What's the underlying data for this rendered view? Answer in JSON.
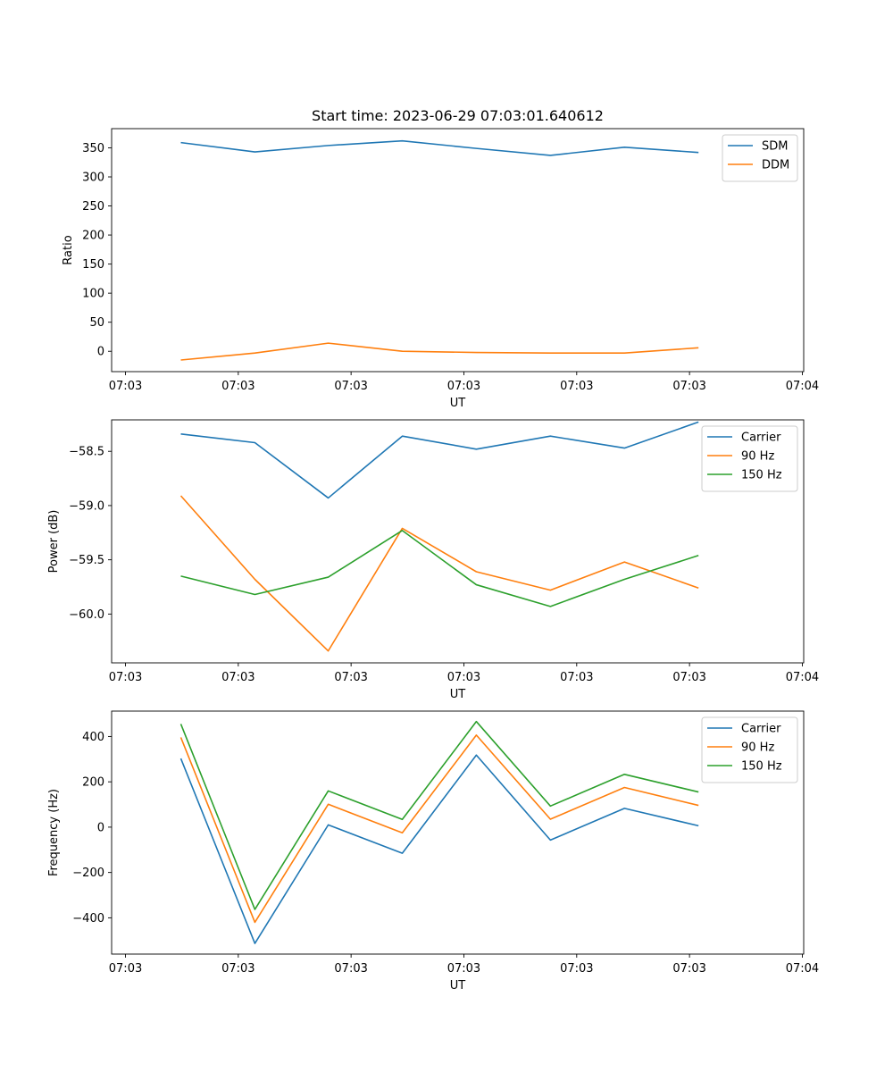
{
  "chart_data": [
    {
      "type": "line",
      "title": "Start time: 2023-06-29 07:03:01.640612",
      "xlabel": "UT",
      "ylabel": "Ratio",
      "legend_position": "top-right",
      "grid": false,
      "xlim": [
        0,
        1
      ],
      "ylim": [
        -35,
        383
      ],
      "x_ticks": [
        {
          "v": 0.02,
          "label": "07:03"
        },
        {
          "v": 0.183,
          "label": "07:03"
        },
        {
          "v": 0.346,
          "label": "07:03"
        },
        {
          "v": 0.509,
          "label": "07:03"
        },
        {
          "v": 0.672,
          "label": "07:03"
        },
        {
          "v": 0.835,
          "label": "07:03"
        },
        {
          "v": 0.998,
          "label": "07:04"
        }
      ],
      "y_ticks": [
        {
          "v": 0,
          "label": "0"
        },
        {
          "v": 50,
          "label": "50"
        },
        {
          "v": 100,
          "label": "100"
        },
        {
          "v": 150,
          "label": "150"
        },
        {
          "v": 200,
          "label": "200"
        },
        {
          "v": 250,
          "label": "250"
        },
        {
          "v": 300,
          "label": "300"
        },
        {
          "v": 350,
          "label": "350"
        }
      ],
      "x": [
        0.1,
        0.207,
        0.313,
        0.42,
        0.527,
        0.634,
        0.741,
        0.848
      ],
      "series": [
        {
          "name": "SDM",
          "color": "#1f77b4",
          "values": [
            359,
            343,
            354,
            362,
            349,
            337,
            351,
            342
          ]
        },
        {
          "name": "DDM",
          "color": "#ff7f0e",
          "values": [
            -15,
            -3,
            14,
            0,
            -2,
            -3,
            -3,
            6
          ]
        }
      ]
    },
    {
      "type": "line",
      "title": "",
      "xlabel": "UT",
      "ylabel": "Power (dB)",
      "legend_position": "top-right",
      "grid": false,
      "xlim": [
        0,
        1
      ],
      "ylim": [
        -60.45,
        -58.21
      ],
      "x_ticks": [
        {
          "v": 0.02,
          "label": "07:03"
        },
        {
          "v": 0.183,
          "label": "07:03"
        },
        {
          "v": 0.346,
          "label": "07:03"
        },
        {
          "v": 0.509,
          "label": "07:03"
        },
        {
          "v": 0.672,
          "label": "07:03"
        },
        {
          "v": 0.835,
          "label": "07:03"
        },
        {
          "v": 0.998,
          "label": "07:04"
        }
      ],
      "y_ticks": [
        {
          "v": -58.5,
          "label": "−58.5"
        },
        {
          "v": -59.0,
          "label": "−59.0"
        },
        {
          "v": -59.5,
          "label": "−59.5"
        },
        {
          "v": -60.0,
          "label": "−60.0"
        }
      ],
      "x": [
        0.1,
        0.207,
        0.313,
        0.42,
        0.527,
        0.634,
        0.741,
        0.848
      ],
      "series": [
        {
          "name": "Carrier",
          "color": "#1f77b4",
          "values": [
            -58.34,
            -58.42,
            -58.93,
            -58.36,
            -58.48,
            -58.36,
            -58.47,
            -58.23
          ]
        },
        {
          "name": "90 Hz",
          "color": "#ff7f0e",
          "values": [
            -58.91,
            -59.68,
            -60.34,
            -59.21,
            -59.61,
            -59.78,
            -59.52,
            -59.76
          ]
        },
        {
          "name": "150 Hz",
          "color": "#2ca02c",
          "values": [
            -59.65,
            -59.82,
            -59.66,
            -59.23,
            -59.73,
            -59.93,
            -59.68,
            -59.46
          ]
        }
      ]
    },
    {
      "type": "line",
      "title": "",
      "xlabel": "UT",
      "ylabel": "Frequency (Hz)",
      "legend_position": "top-right",
      "grid": false,
      "xlim": [
        0,
        1
      ],
      "ylim": [
        -560,
        512
      ],
      "x_ticks": [
        {
          "v": 0.02,
          "label": "07:03"
        },
        {
          "v": 0.183,
          "label": "07:03"
        },
        {
          "v": 0.346,
          "label": "07:03"
        },
        {
          "v": 0.509,
          "label": "07:03"
        },
        {
          "v": 0.672,
          "label": "07:03"
        },
        {
          "v": 0.835,
          "label": "07:03"
        },
        {
          "v": 0.998,
          "label": "07:04"
        }
      ],
      "y_ticks": [
        {
          "v": -400,
          "label": "−400"
        },
        {
          "v": -200,
          "label": "−200"
        },
        {
          "v": 0,
          "label": "0"
        },
        {
          "v": 200,
          "label": "200"
        },
        {
          "v": 400,
          "label": "400"
        }
      ],
      "x": [
        0.1,
        0.207,
        0.313,
        0.42,
        0.527,
        0.634,
        0.741,
        0.848
      ],
      "series": [
        {
          "name": "Carrier",
          "color": "#1f77b4",
          "values": [
            303,
            -513,
            10,
            -115,
            318,
            -57,
            83,
            6
          ]
        },
        {
          "name": "90 Hz",
          "color": "#ff7f0e",
          "values": [
            396,
            -420,
            101,
            -25,
            406,
            35,
            175,
            96
          ]
        },
        {
          "name": "150 Hz",
          "color": "#2ca02c",
          "values": [
            455,
            -363,
            160,
            34,
            466,
            93,
            233,
            155
          ]
        }
      ]
    }
  ]
}
